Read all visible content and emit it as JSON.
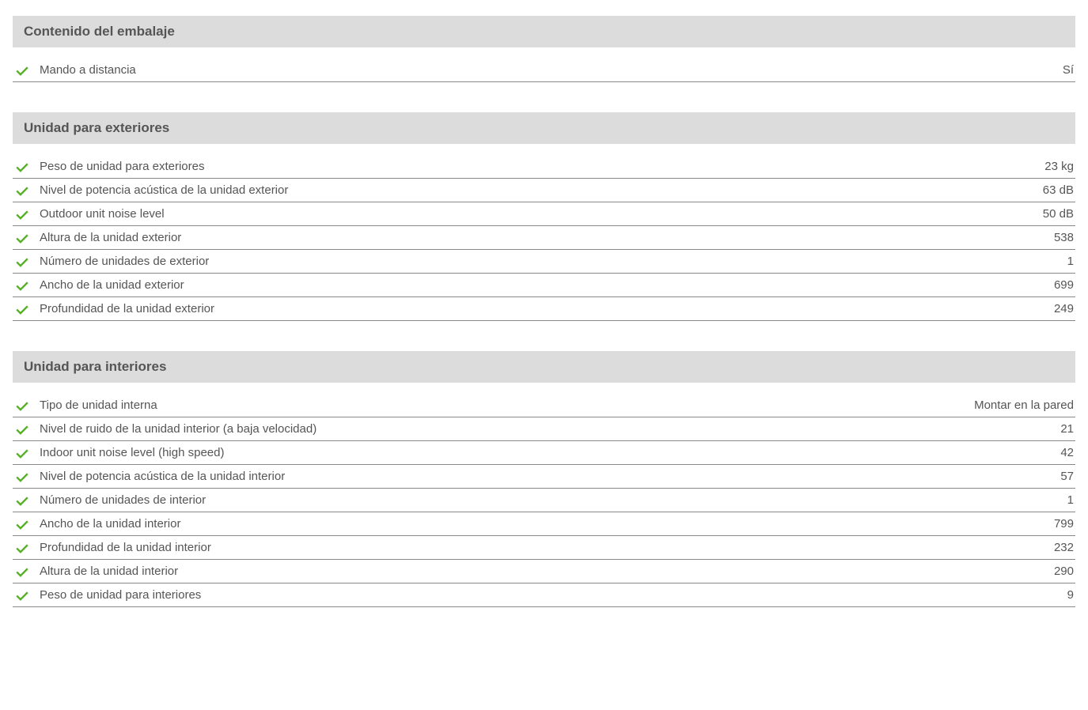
{
  "colors": {
    "background": "#ffffff",
    "section_header_bg": "#dcdcdc",
    "text": "#555555",
    "check_color": "#56b026",
    "row_border": "#888888"
  },
  "typography": {
    "font_family": "Trebuchet MS, Lucida Sans Unicode, Lucida Grande, sans-serif",
    "header_fontsize_pt": 13,
    "header_fontweight": "bold",
    "row_fontsize_pt": 11
  },
  "sections": [
    {
      "title": "Contenido del embalaje",
      "rows": [
        {
          "label": "Mando a distancia",
          "value": "Sí"
        }
      ]
    },
    {
      "title": "Unidad para exteriores",
      "rows": [
        {
          "label": "Peso de unidad para exteriores",
          "value": "23 kg"
        },
        {
          "label": "Nivel de potencia acústica de la unidad exterior",
          "value": "63 dB"
        },
        {
          "label": "Outdoor unit noise level",
          "value": "50 dB"
        },
        {
          "label": "Altura de la unidad exterior",
          "value": "538"
        },
        {
          "label": "Número de unidades de exterior",
          "value": "1"
        },
        {
          "label": "Ancho de la unidad exterior",
          "value": "699"
        },
        {
          "label": "Profundidad de la unidad exterior",
          "value": "249"
        }
      ]
    },
    {
      "title": "Unidad para interiores",
      "rows": [
        {
          "label": "Tipo de unidad interna",
          "value": "Montar en la pared"
        },
        {
          "label": "Nivel de ruido de la unidad interior (a baja velocidad)",
          "value": "21"
        },
        {
          "label": "Indoor unit noise level (high speed)",
          "value": "42"
        },
        {
          "label": "Nivel de potencia acústica de la unidad interior",
          "value": "57"
        },
        {
          "label": "Número de unidades de interior",
          "value": "1"
        },
        {
          "label": "Ancho de la unidad interior",
          "value": "799"
        },
        {
          "label": "Profundidad de la unidad interior",
          "value": "232"
        },
        {
          "label": "Altura de la unidad interior",
          "value": "290"
        },
        {
          "label": "Peso de unidad para interiores",
          "value": "9"
        }
      ]
    }
  ]
}
